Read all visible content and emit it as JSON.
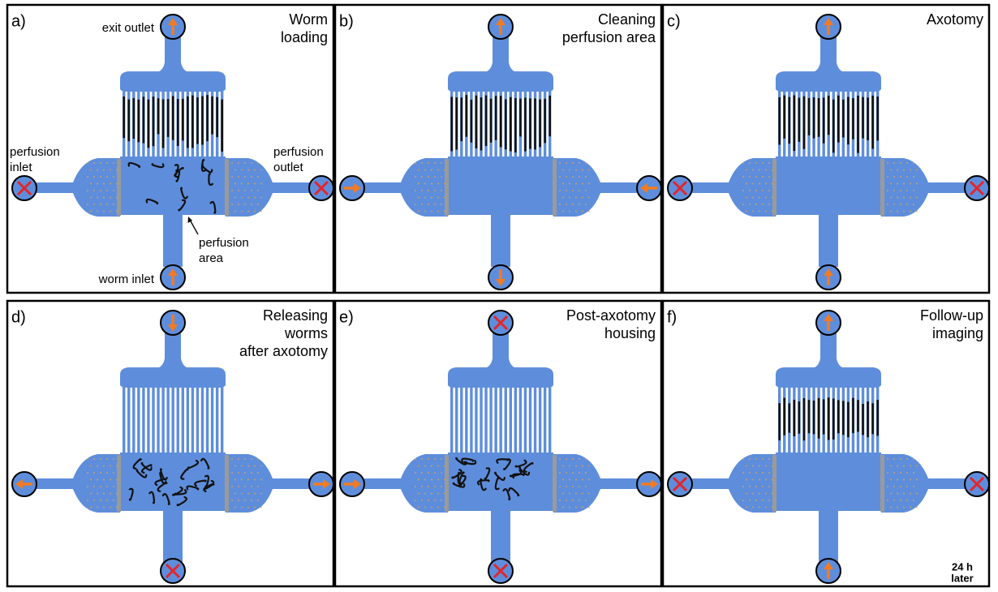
{
  "panels": [
    {
      "label": "a)",
      "title": [
        "Worm",
        "loading"
      ],
      "annotations": {
        "exit_outlet": "exit outlet",
        "perfusion_inlet": [
          "perfusion",
          "inlet"
        ],
        "perfusion_outlet": [
          "perfusion",
          "outlet"
        ],
        "perfusion_area": [
          "perfusion",
          "area"
        ],
        "worm_inlet": "worm inlet"
      }
    },
    {
      "label": "b)",
      "title": [
        "Cleaning",
        "perfusion area"
      ]
    },
    {
      "label": "c)",
      "title": [
        "Axotomy"
      ]
    },
    {
      "label": "d)",
      "title": [
        "Releasing",
        "worms",
        "after axotomy"
      ]
    },
    {
      "label": "e)",
      "title": [
        "Post-axotomy",
        "housing"
      ]
    },
    {
      "label": "f)",
      "title": [
        "Follow-up",
        "imaging"
      ],
      "note": [
        "24 h",
        "later"
      ]
    }
  ]
}
